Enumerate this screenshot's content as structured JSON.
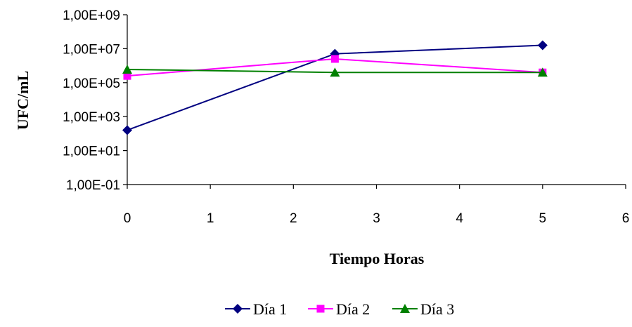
{
  "chart_data": {
    "type": "line",
    "xlabel": "Tiempo Horas",
    "ylabel": "UFC/mL",
    "y_scale": "log",
    "xlim": [
      0,
      6
    ],
    "ylim": [
      0.1,
      1000000000
    ],
    "x_ticks": [
      "0",
      "1",
      "2",
      "3",
      "4",
      "5",
      "6"
    ],
    "y_ticks": [
      "1,00E-01",
      "1,00E+01",
      "1,00E+03",
      "1,00E+05",
      "1,00E+07",
      "1,00E+09"
    ],
    "grid": false,
    "legend_position": "bottom",
    "series": [
      {
        "name": "Día 1",
        "color": "#000080",
        "marker": "diamond",
        "x": [
          0,
          2.5,
          5
        ],
        "y": [
          160,
          5000000,
          16000000
        ]
      },
      {
        "name": "Día 2",
        "color": "#FF00FF",
        "marker": "square",
        "x": [
          0,
          2.5,
          5
        ],
        "y": [
          250000,
          2500000,
          400000
        ]
      },
      {
        "name": "Día 3",
        "color": "#008000",
        "marker": "triangle",
        "x": [
          0,
          2.5,
          5
        ],
        "y": [
          600000,
          400000,
          400000
        ]
      }
    ]
  }
}
